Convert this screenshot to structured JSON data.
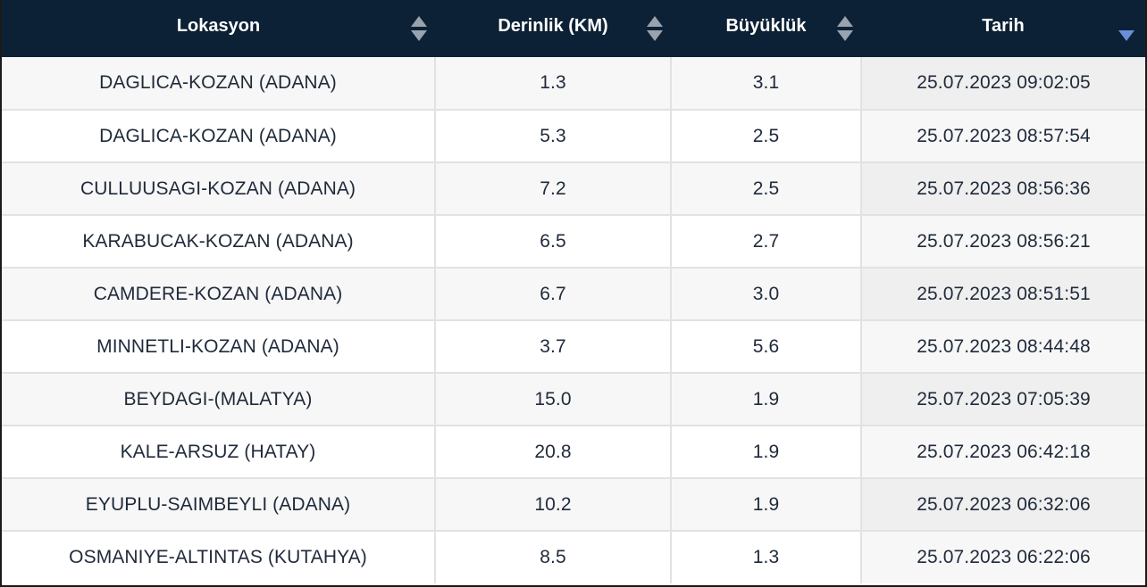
{
  "table": {
    "headers": {
      "location": "Lokasyon",
      "depth": "Derinlik (KM)",
      "magnitude": "Büyüklük",
      "date": "Tarih"
    },
    "sort_icons": {
      "location": "sort-both-icon",
      "depth": "sort-both-icon",
      "magnitude": "sort-both-icon",
      "date": "sort-desc-icon"
    },
    "colors": {
      "header_bg": "#0c2135",
      "header_text": "#ffffff",
      "active_sort": "#6a8fd8",
      "inactive_sort": "#9aa3ad"
    },
    "rows": [
      {
        "location": "DAGLICA-KOZAN (ADANA)",
        "depth": "1.3",
        "magnitude": "3.1",
        "date": "25.07.2023 09:02:05"
      },
      {
        "location": "DAGLICA-KOZAN (ADANA)",
        "depth": "5.3",
        "magnitude": "2.5",
        "date": "25.07.2023 08:57:54"
      },
      {
        "location": "CULLUUSAGI-KOZAN (ADANA)",
        "depth": "7.2",
        "magnitude": "2.5",
        "date": "25.07.2023 08:56:36"
      },
      {
        "location": "KARABUCAK-KOZAN (ADANA)",
        "depth": "6.5",
        "magnitude": "2.7",
        "date": "25.07.2023 08:56:21"
      },
      {
        "location": "CAMDERE-KOZAN (ADANA)",
        "depth": "6.7",
        "magnitude": "3.0",
        "date": "25.07.2023 08:51:51"
      },
      {
        "location": "MINNETLI-KOZAN (ADANA)",
        "depth": "3.7",
        "magnitude": "5.6",
        "date": "25.07.2023 08:44:48"
      },
      {
        "location": "BEYDAGI-(MALATYA)",
        "depth": "15.0",
        "magnitude": "1.9",
        "date": "25.07.2023 07:05:39"
      },
      {
        "location": "KALE-ARSUZ (HATAY)",
        "depth": "20.8",
        "magnitude": "1.9",
        "date": "25.07.2023 06:42:18"
      },
      {
        "location": "EYUPLU-SAIMBEYLI (ADANA)",
        "depth": "10.2",
        "magnitude": "1.9",
        "date": "25.07.2023 06:32:06"
      },
      {
        "location": "OSMANIYE-ALTINTAS (KUTAHYA)",
        "depth": "8.5",
        "magnitude": "1.3",
        "date": "25.07.2023 06:22:06"
      }
    ]
  }
}
